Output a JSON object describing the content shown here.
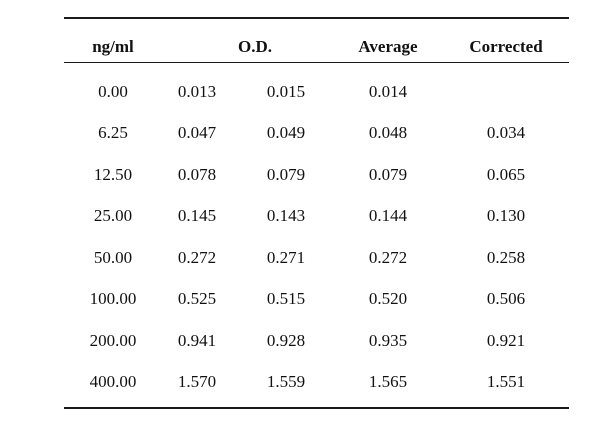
{
  "table": {
    "headers": {
      "concentration": "ng/ml",
      "od": "O.D.",
      "average": "Average",
      "corrected": "Corrected"
    },
    "rows": [
      {
        "conc": "0.00",
        "od1": "0.013",
        "od2": "0.015",
        "avg": "0.014",
        "corr": ""
      },
      {
        "conc": "6.25",
        "od1": "0.047",
        "od2": "0.049",
        "avg": "0.048",
        "corr": "0.034"
      },
      {
        "conc": "12.50",
        "od1": "0.078",
        "od2": "0.079",
        "avg": "0.079",
        "corr": "0.065"
      },
      {
        "conc": "25.00",
        "od1": "0.145",
        "od2": "0.143",
        "avg": "0.144",
        "corr": "0.130"
      },
      {
        "conc": "50.00",
        "od1": "0.272",
        "od2": "0.271",
        "avg": "0.272",
        "corr": "0.258"
      },
      {
        "conc": "100.00",
        "od1": "0.525",
        "od2": "0.515",
        "avg": "0.520",
        "corr": "0.506"
      },
      {
        "conc": "200.00",
        "od1": "0.941",
        "od2": "0.928",
        "avg": "0.935",
        "corr": "0.921"
      },
      {
        "conc": "400.00",
        "od1": "1.570",
        "od2": "1.559",
        "avg": "1.565",
        "corr": "1.551"
      }
    ]
  }
}
